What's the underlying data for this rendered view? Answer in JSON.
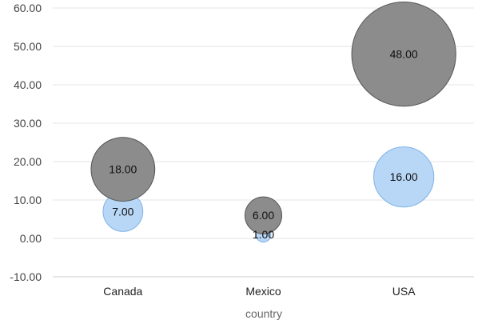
{
  "chart_data": {
    "type": "scatter",
    "subtype": "bubble",
    "title": "",
    "xlabel": "country",
    "ylabel": "",
    "categories": [
      "Canada",
      "Mexico",
      "USA"
    ],
    "ylim": [
      -10,
      60
    ],
    "yticks": [
      "-10.00",
      "0.00",
      "10.00",
      "20.00",
      "30.00",
      "40.00",
      "50.00",
      "60.00"
    ],
    "grid": true,
    "legend": "none",
    "series": [
      {
        "color": "#b8d6f5",
        "stroke": "#7fb3e8",
        "points": [
          {
            "x": "Canada",
            "y": 7,
            "size": 7,
            "label": "7.00"
          },
          {
            "x": "Mexico",
            "y": 1,
            "size": 1,
            "label": "1.00"
          },
          {
            "x": "USA",
            "y": 16,
            "size": 16,
            "label": "16.00"
          }
        ]
      },
      {
        "color": "#8c8c8c",
        "stroke": "#555555",
        "points": [
          {
            "x": "Canada",
            "y": 18,
            "size": 18,
            "label": "18.00"
          },
          {
            "x": "Mexico",
            "y": 6,
            "size": 6,
            "label": "6.00"
          },
          {
            "x": "USA",
            "y": 48,
            "size": 48,
            "label": "48.00"
          }
        ]
      }
    ]
  }
}
